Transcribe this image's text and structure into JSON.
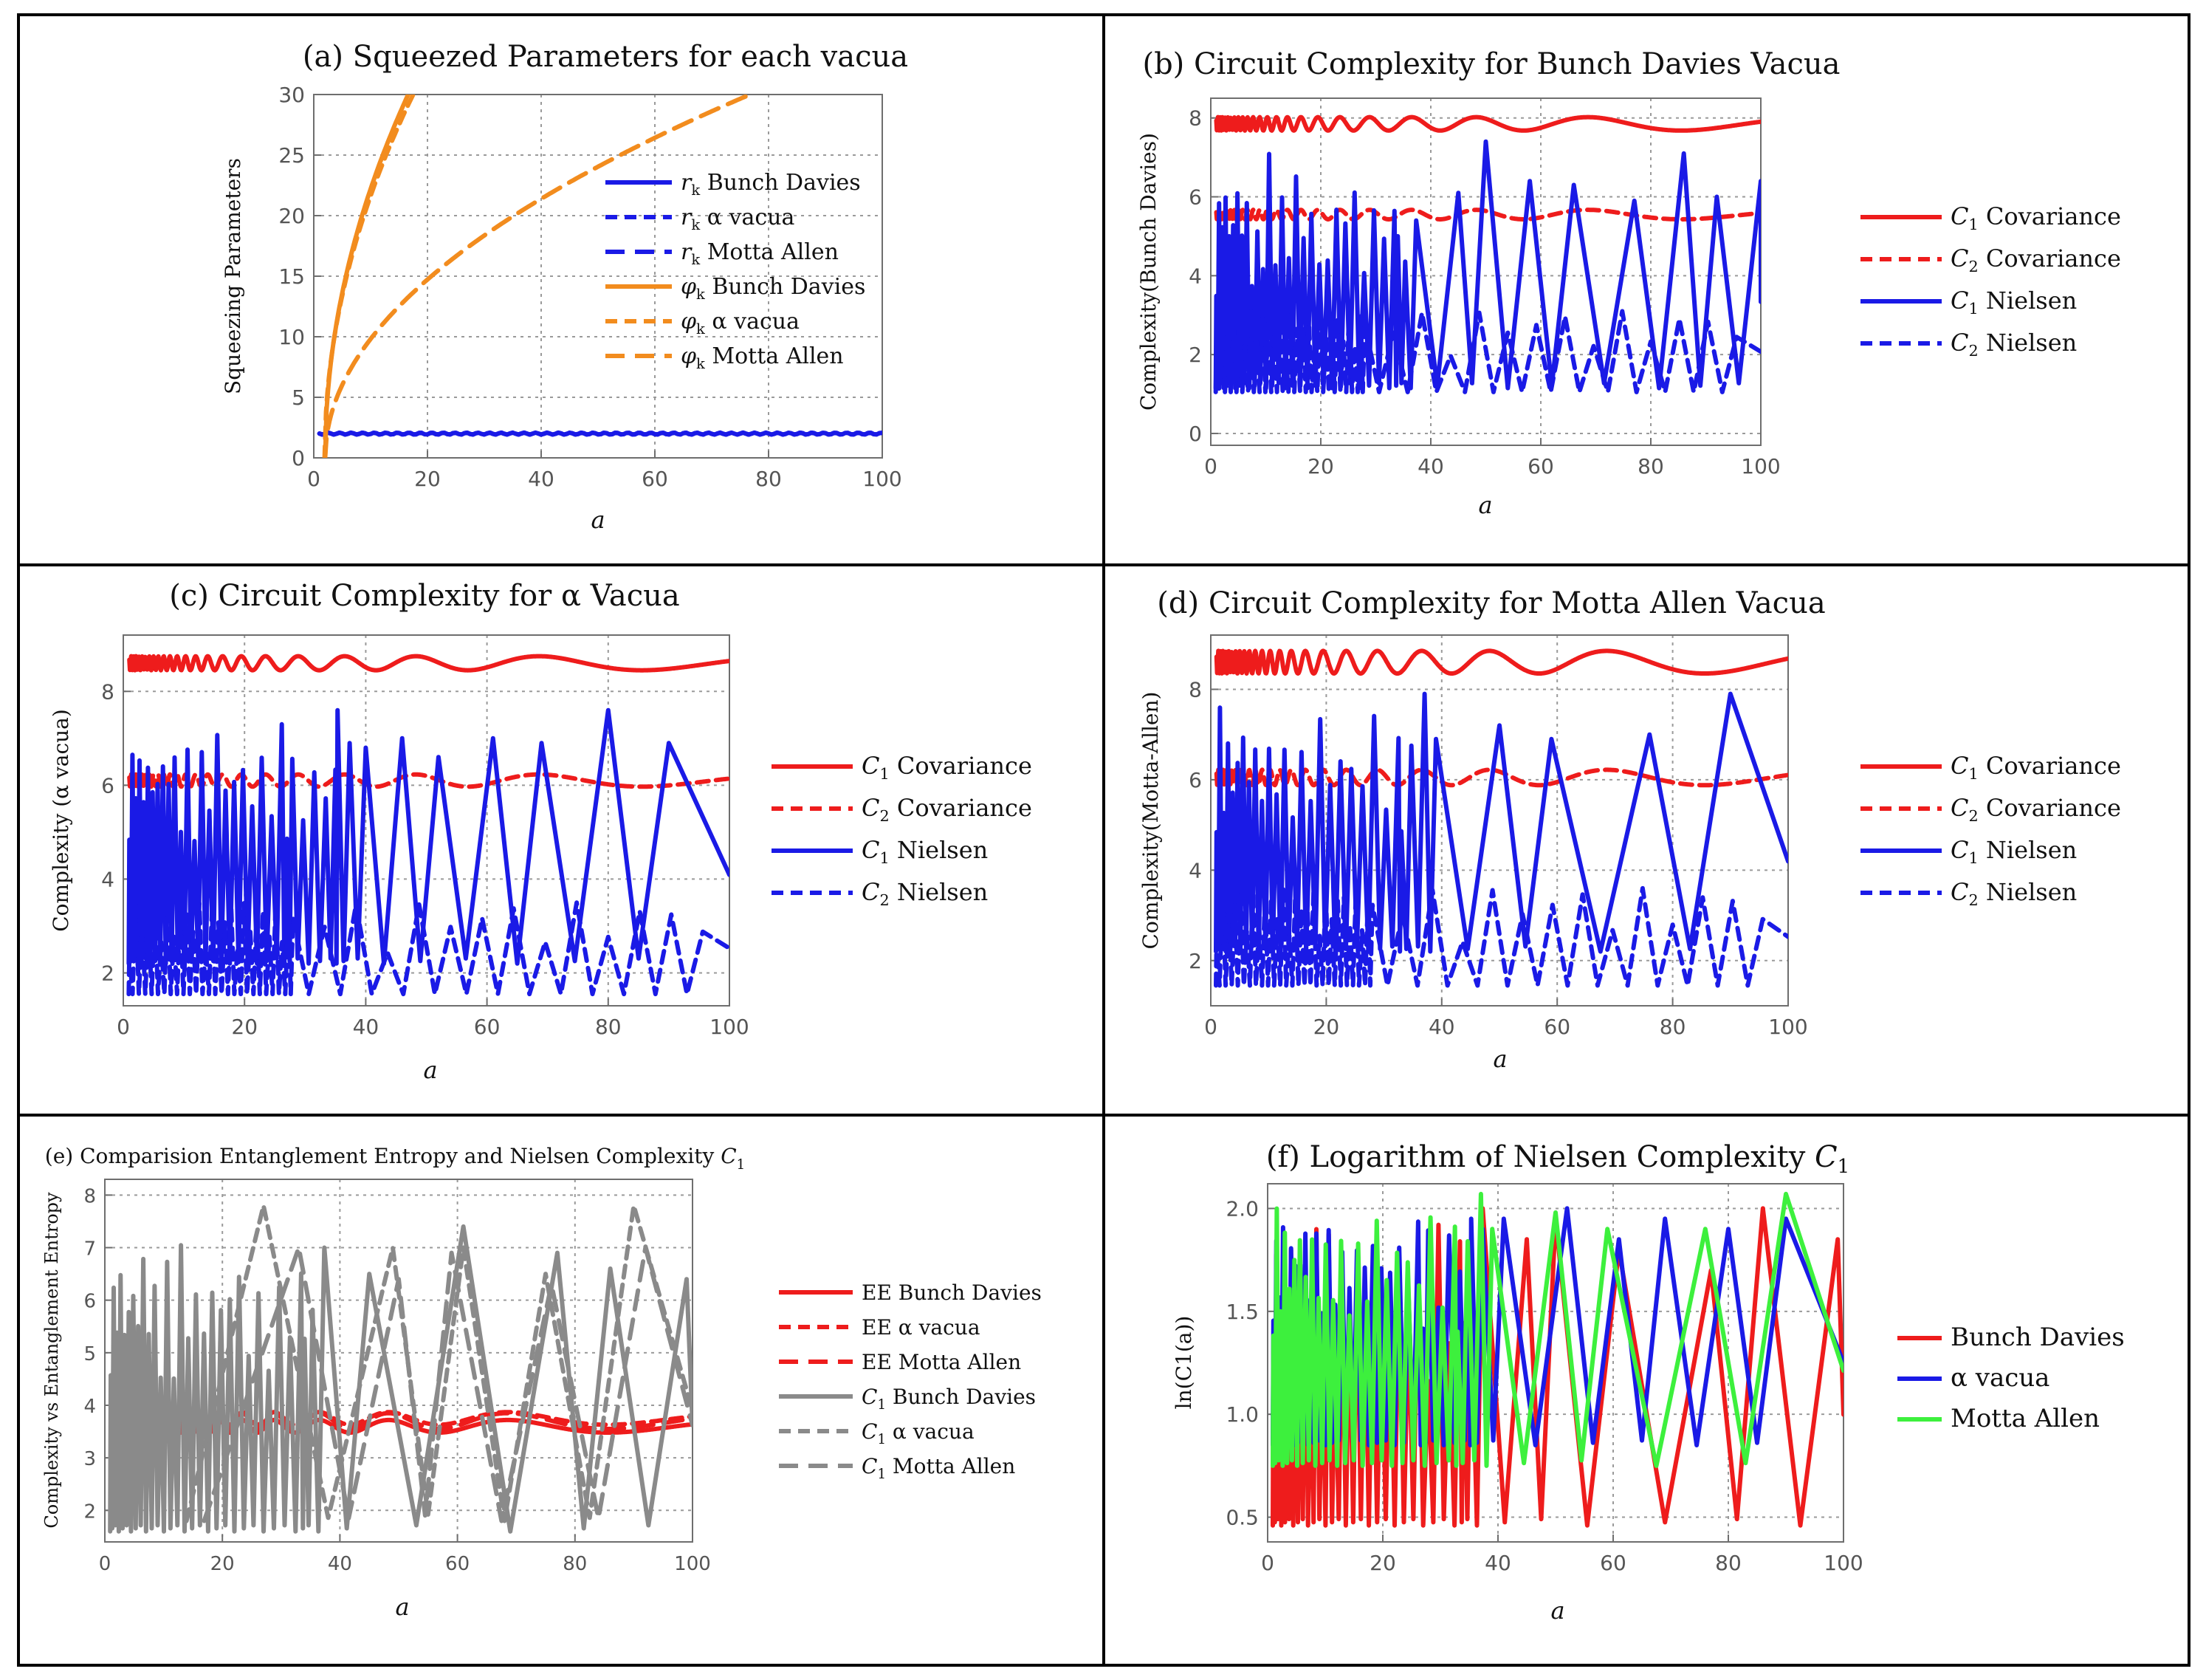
{
  "figure": {
    "panels_note": "Six-panel figure of squeezing parameters, circuit complexity and entanglement entropy"
  },
  "colors": {
    "red": "#ee1c1c",
    "blue": "#1a1ae6",
    "orange": "#f28c1e",
    "gray": "#8a8a8a",
    "green": "#3df03d"
  },
  "chart_data": [
    {
      "id": "a",
      "type": "line",
      "title": "(a) Squeezed Parameters for each vacua",
      "xlabel": "a",
      "ylabel": "Squeezing Parameters",
      "xlim": [
        0,
        100
      ],
      "ylim": [
        0,
        30
      ],
      "xticks": [
        0,
        20,
        40,
        60,
        80,
        100
      ],
      "yticks": [
        0,
        5,
        10,
        15,
        20,
        25,
        30
      ],
      "legend_position": "center-right",
      "series": [
        {
          "name": "r_k Bunch Davies",
          "label_sym": "r",
          "label_sub": "k",
          "label_rest": " Bunch Davies",
          "color": "#1a1ae6",
          "dash": "solid",
          "style": "flat",
          "level": 2.0,
          "ripple": 0.08
        },
        {
          "name": "r_k α vacua",
          "label_sym": "r",
          "label_sub": "k",
          "label_rest": " α vacua",
          "color": "#1a1ae6",
          "dash": "dashed",
          "style": "flat",
          "level": 2.0,
          "ripple": 0.08
        },
        {
          "name": "r_k Motta Allen",
          "label_sym": "r",
          "label_sub": "k",
          "label_rest": " Motta Allen",
          "color": "#1a1ae6",
          "dash": "longdash",
          "style": "flat",
          "level": 2.0,
          "ripple": 0.08
        },
        {
          "name": "φ_k Bunch Davies",
          "label_sym": "φ",
          "label_sub": "k",
          "label_rest": " Bunch Davies",
          "color": "#f28c1e",
          "dash": "solid",
          "style": "sqrt",
          "x0": 2.0,
          "scale": 7.85,
          "xmax": 20.5
        },
        {
          "name": "φ_k α vacua",
          "label_sym": "φ",
          "label_sub": "k",
          "label_rest": " α vacua",
          "color": "#f28c1e",
          "dash": "dashed",
          "style": "sqrt",
          "x0": 1.9,
          "scale": 7.6,
          "xmax": 19.5
        },
        {
          "name": "φ_k Motta Allen",
          "label_sym": "φ",
          "label_sub": "k",
          "label_rest": " Motta Allen",
          "color": "#f28c1e",
          "dash": "longdash",
          "style": "sqrt",
          "x0": 2.0,
          "scale": 3.47,
          "xmax": 77
        }
      ]
    },
    {
      "id": "b",
      "type": "line",
      "title": "(b) Circuit Complexity for Bunch Davies Vacua",
      "xlabel": "a",
      "ylabel": "Complexity(Bunch Davies)",
      "xlim": [
        0,
        100
      ],
      "ylim": [
        -0.3,
        8.5
      ],
      "xticks": [
        0,
        20,
        40,
        60,
        80,
        100
      ],
      "yticks": [
        0,
        2,
        4,
        6,
        8
      ],
      "legend_position": "right-outside",
      "series": [
        {
          "name": "C1 Covariance",
          "label_sym": "C",
          "label_sub": "1",
          "label_rest": " Covariance",
          "color": "#ee1c1c",
          "dash": "solid",
          "style": "osc",
          "mean": 7.85,
          "amp": 0.17
        },
        {
          "name": "C2 Covariance",
          "label_sym": "C",
          "label_sub": "2",
          "label_rest": " Covariance",
          "color": "#ee1c1c",
          "dash": "dashed",
          "style": "osc",
          "mean": 5.55,
          "amp": 0.12
        },
        {
          "name": "C1 Nielsen",
          "label_sym": "C",
          "label_sub": "1",
          "label_rest": " Nielsen",
          "color": "#1a1ae6",
          "dash": "solid",
          "style": "spike",
          "low": 1.15,
          "peaks": [
            5.4,
            6.1,
            7.4,
            6.4,
            6.3,
            5.9,
            7.1,
            6.0,
            6.4,
            4.8
          ],
          "peakXs": [
            34,
            45,
            50,
            58,
            66,
            77,
            86,
            92,
            100
          ],
          "nPeaksLeft": 30
        },
        {
          "name": "C2 Nielsen",
          "label_sym": "C",
          "label_sub": "2",
          "label_rest": " Nielsen",
          "color": "#1a1ae6",
          "dash": "dashed",
          "style": "spike2",
          "low": 1.05,
          "high": 3.1
        }
      ]
    },
    {
      "id": "c",
      "type": "line",
      "title": "(c) Circuit Complexity for α Vacua",
      "xlabel": "a",
      "ylabel": "Complexity (α vacua)",
      "xlim": [
        0,
        100
      ],
      "ylim": [
        1.3,
        9.2
      ],
      "xticks": [
        0,
        20,
        40,
        60,
        80,
        100
      ],
      "yticks": [
        2,
        4,
        6,
        8
      ],
      "legend_position": "right-outside",
      "series": [
        {
          "name": "C1 Covariance",
          "label_sym": "C",
          "label_sub": "1",
          "label_rest": " Covariance",
          "color": "#ee1c1c",
          "dash": "solid",
          "style": "osc",
          "mean": 8.6,
          "amp": 0.15
        },
        {
          "name": "C2 Covariance",
          "label_sym": "C",
          "label_sub": "2",
          "label_rest": " Covariance",
          "color": "#ee1c1c",
          "dash": "dashed",
          "style": "osc",
          "mean": 6.1,
          "amp": 0.13
        },
        {
          "name": "C1 Nielsen",
          "label_sym": "C",
          "label_sub": "1",
          "label_rest": " Nielsen",
          "color": "#1a1ae6",
          "dash": "solid",
          "style": "spike",
          "low": 2.2,
          "peaks": [
            7.0,
            6.9,
            7.6,
            6.9,
            6.8,
            7.0,
            6.6
          ],
          "peakXs": [
            27,
            35,
            40,
            46,
            52,
            61,
            69,
            80,
            90
          ],
          "nPeaksLeft": 30
        },
        {
          "name": "C2 Nielsen",
          "label_sym": "C",
          "label_sub": "2",
          "label_rest": " Nielsen",
          "color": "#1a1ae6",
          "dash": "dashed",
          "style": "spike2",
          "low": 1.55,
          "high": 3.5
        }
      ]
    },
    {
      "id": "d",
      "type": "line",
      "title": "(d) Circuit Complexity for Motta Allen Vacua",
      "xlabel": "a",
      "ylabel": "Complexity(Motta-Allen)",
      "xlim": [
        0,
        100
      ],
      "ylim": [
        1.0,
        9.2
      ],
      "xticks": [
        0,
        20,
        40,
        60,
        80,
        100
      ],
      "yticks": [
        2,
        4,
        6,
        8
      ],
      "legend_position": "right-outside",
      "series": [
        {
          "name": "C1 Covariance",
          "label_sym": "C",
          "label_sub": "1",
          "label_rest": " Covariance",
          "color": "#ee1c1c",
          "dash": "solid",
          "style": "osc",
          "mean": 8.6,
          "amp": 0.25
        },
        {
          "name": "C2 Covariance",
          "label_sym": "C",
          "label_sub": "2",
          "label_rest": " Covariance",
          "color": "#ee1c1c",
          "dash": "dashed",
          "style": "osc",
          "mean": 6.05,
          "amp": 0.17
        },
        {
          "name": "C1 Nielsen",
          "label_sym": "C",
          "label_sub": "1",
          "label_rest": " Nielsen",
          "color": "#1a1ae6",
          "dash": "solid",
          "style": "spike",
          "low": 2.2,
          "peaks": [
            7.0,
            7.9,
            6.9,
            7.2,
            6.9
          ],
          "peakXs": [
            33,
            39,
            50,
            59,
            76,
            90
          ],
          "nPeaksLeft": 26
        },
        {
          "name": "C2 Nielsen",
          "label_sym": "C",
          "label_sub": "2",
          "label_rest": " Nielsen",
          "color": "#1a1ae6",
          "dash": "dashed",
          "style": "spike2",
          "low": 1.45,
          "high": 3.6
        }
      ]
    },
    {
      "id": "e",
      "type": "line",
      "title": "(e) Comparision Entanglement Entropy and Nielsen Complexity C1",
      "title_main": "(e) Comparision Entanglement Entropy and Nielsen Complexity ",
      "title_sym": "C",
      "title_sub": "1",
      "xlabel": "a",
      "ylabel": "Complexity vs Entanglement Entropy",
      "xlim": [
        0,
        100
      ],
      "ylim": [
        1.4,
        8.3
      ],
      "xticks": [
        0,
        20,
        40,
        60,
        80,
        100
      ],
      "yticks": [
        2,
        3,
        4,
        5,
        6,
        7,
        8
      ],
      "legend_position": "right-outside",
      "series": [
        {
          "name": "EE Bunch Davies",
          "label_rest": "EE Bunch Davies",
          "color": "#ee1c1c",
          "dash": "solid",
          "style": "osc",
          "mean": 3.6,
          "amp": 0.12,
          "xstart": 10
        },
        {
          "name": "EE α vacua",
          "label_rest": "EE α vacua",
          "color": "#ee1c1c",
          "dash": "dashed",
          "style": "osc",
          "mean": 3.75,
          "amp": 0.12,
          "xstart": 10
        },
        {
          "name": "EE Motta Allen",
          "label_rest": "EE Motta Allen",
          "color": "#ee1c1c",
          "dash": "longdash",
          "style": "osc",
          "mean": 3.7,
          "amp": 0.15,
          "xstart": 10
        },
        {
          "name": "C1 Bunch Davies",
          "label_sym": "C",
          "label_sub": "1",
          "label_rest": " Bunch Davies",
          "color": "#8a8a8a",
          "dash": "solid",
          "style": "spike",
          "low": 1.6,
          "peaks": [
            7.0,
            6.5,
            7.4,
            6.9,
            6.6,
            6.4
          ],
          "peakXs": [
            34,
            45,
            61,
            77,
            86,
            99
          ],
          "nPeaksLeft": 30
        },
        {
          "name": "C1 α vacua",
          "label_sym": "C",
          "label_sub": "1",
          "label_rest": " α vacua",
          "color": "#8a8a8a",
          "dash": "dashed",
          "style": "spike",
          "low": 1.8,
          "peaks": [
            7.8,
            7.0,
            7.0,
            6.5
          ],
          "peakXs": [
            27,
            49,
            61,
            75,
            90
          ],
          "nPeaksLeft": 0
        },
        {
          "name": "C1 Motta Allen",
          "label_sym": "C",
          "label_sub": "1",
          "label_rest": " Motta Allen",
          "color": "#8a8a8a",
          "dash": "longdash",
          "style": "spike",
          "low": 1.8,
          "peaks": [
            7.0,
            6.4,
            6.9,
            6.3
          ],
          "peakXs": [
            33,
            50,
            59,
            76,
            92
          ],
          "nPeaksLeft": 0
        }
      ]
    },
    {
      "id": "f",
      "type": "line",
      "title": "(f) Logarithm of Nielsen Complexity C1",
      "title_main": "(f) Logarithm of Nielsen Complexity ",
      "title_sym": "C",
      "title_sub": "1",
      "xlabel": "a",
      "ylabel": "ln(C1(a))",
      "xlim": [
        0,
        100
      ],
      "ylim": [
        0.38,
        2.12
      ],
      "xticks": [
        0,
        20,
        40,
        60,
        80,
        100
      ],
      "yticks": [
        0.5,
        1.0,
        1.5,
        2.0
      ],
      "ytick_labels": [
        "0.5",
        "1.0",
        "1.5",
        "2.0"
      ],
      "legend_position": "right-outside",
      "series": [
        {
          "name": "Bunch Davies",
          "label_rest": "Bunch Davies",
          "color": "#ee1c1c",
          "dash": "solid",
          "style": "spike",
          "low": 0.46,
          "peaks": [
            2.0,
            1.85,
            1.95,
            1.8,
            1.7
          ],
          "peakXs": [
            34,
            45,
            50,
            61,
            77,
            86,
            99
          ],
          "nPeaksLeft": 30
        },
        {
          "name": "α vacua",
          "label_rest": "α vacua",
          "color": "#1a1ae6",
          "dash": "solid",
          "style": "spike",
          "low": 0.85,
          "peaks": [
            1.95,
            1.9,
            1.95,
            2.0,
            1.85
          ],
          "peakXs": [
            27,
            35,
            41,
            52,
            61,
            69,
            80,
            90
          ],
          "nPeaksLeft": 30
        },
        {
          "name": "Motta Allen",
          "label_rest": "Motta Allen",
          "color": "#3df03d",
          "dash": "solid",
          "style": "spike",
          "low": 0.75,
          "peaks": [
            1.9,
            2.07,
            1.9,
            1.98,
            1.9
          ],
          "peakXs": [
            33,
            39,
            50,
            59,
            76,
            90
          ],
          "nPeaksLeft": 26
        }
      ]
    }
  ]
}
